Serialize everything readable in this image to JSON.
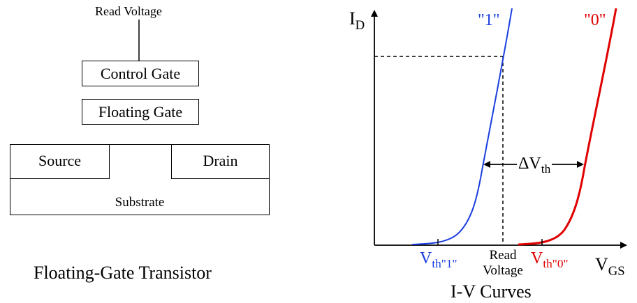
{
  "transistor": {
    "read_voltage_label": "Read Voltage",
    "control_gate_label": "Control Gate",
    "floating_gate_label": "Floating Gate",
    "source_label": "Source",
    "drain_label": "Drain",
    "substrate_label": "Substrate",
    "caption": "Floating-Gate Transistor"
  },
  "iv_plot": {
    "y_axis_main": "I",
    "y_axis_sub": "D",
    "x_axis_main": "V",
    "x_axis_sub": "GS",
    "curve_one_label": "\"1\"",
    "curve_zero_label": "\"0\"",
    "vth_one_main": "V",
    "vth_one_sub": "th\"1\"",
    "vth_zero_main": "V",
    "vth_zero_sub": "th\"0\"",
    "read_voltage_line1": "Read",
    "read_voltage_line2": "Voltage",
    "delta_main": "ΔV",
    "delta_sub": "th",
    "caption": "I-V Curves",
    "colors": {
      "curve_one": "#1a3ee0",
      "curve_zero": "#e00000",
      "axis": "#000000"
    }
  }
}
